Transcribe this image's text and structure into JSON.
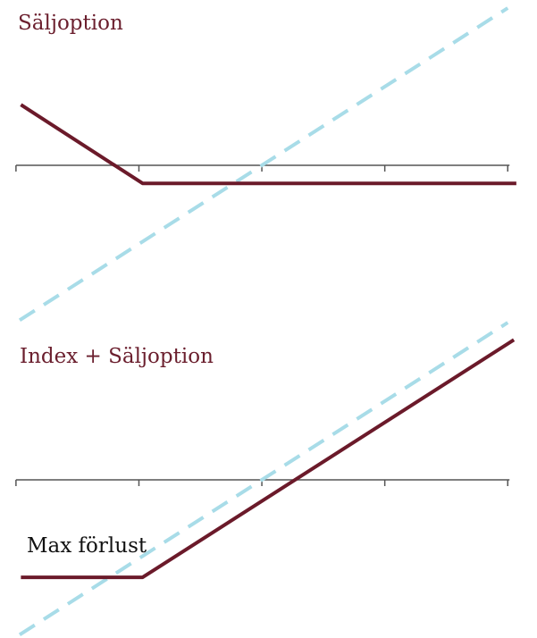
{
  "chart_data": [
    {
      "type": "line",
      "title": "Säljoption",
      "xlim": [
        -0.05,
        4.1
      ],
      "xticks": [
        0,
        1,
        2,
        3,
        4
      ],
      "ylim": [
        -2,
        2
      ],
      "series": [
        {
          "color": "#a8dce8",
          "dashed": true,
          "x": [
            0.03,
            4
          ],
          "values": [
            -1.97,
            2
          ]
        },
        {
          "color": "#6b1a2a",
          "dashed": false,
          "x": [
            0.04,
            1.03,
            4.07
          ],
          "values": [
            0.77,
            -0.23,
            -0.23
          ]
        }
      ]
    },
    {
      "type": "line",
      "title": "Index + Säljoption",
      "annotation": "Max förlust",
      "xlim": [
        -0.05,
        4.1
      ],
      "xticks": [
        0,
        1,
        2,
        3,
        4
      ],
      "ylim": [
        -2,
        2
      ],
      "series": [
        {
          "color": "#a8dce8",
          "dashed": true,
          "x": [
            0.03,
            4
          ],
          "values": [
            -1.97,
            2
          ]
        },
        {
          "color": "#6b1a2a",
          "dashed": false,
          "x": [
            0.04,
            1.03,
            4.05
          ],
          "values": [
            -1.24,
            -1.24,
            1.78
          ]
        }
      ]
    }
  ]
}
